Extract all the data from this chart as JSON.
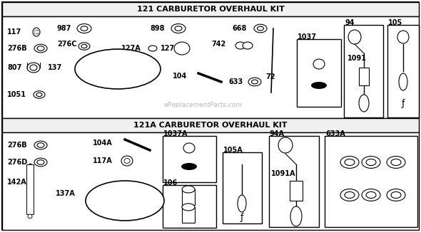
{
  "title1": "121 CARBURETOR OVERHAUL KIT",
  "title2": "121A CARBURETOR OVERHAUL KIT",
  "watermark": "eReplacementParts.com",
  "bg_color": "#ffffff",
  "border_color": "#000000",
  "text_color": "#000000"
}
